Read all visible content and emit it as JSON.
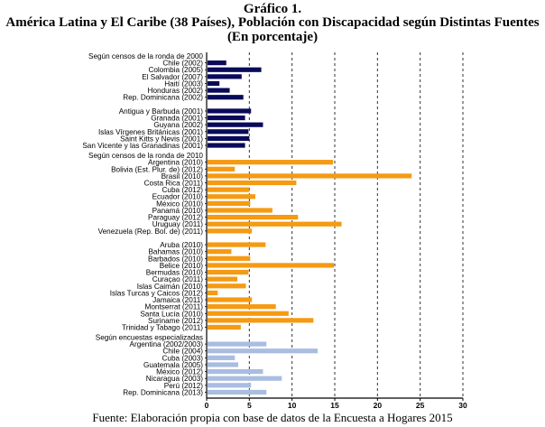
{
  "title": {
    "line1": "Gráfico 1.",
    "line2": "América Latina y El Caribe (38 Países), Población con Discapacidad según Distintas Fuentes",
    "line3": "(En porcentaje)"
  },
  "source": "Fuente: Elaboración propia con base de datos de la Encuesta a Hogares 2015",
  "chart_data": {
    "type": "bar",
    "orientation": "horizontal",
    "title": "América Latina y El Caribe (38 Países), Población con Discapacidad según Distintas Fuentes (En porcentaje)",
    "xlabel": "",
    "ylabel": "",
    "xlim": [
      0,
      30
    ],
    "xticks": [
      0,
      5,
      10,
      15,
      20,
      25,
      30
    ],
    "grid": "vertical dashed",
    "groups": [
      {
        "name": "Según censos de la ronda de 2000",
        "color": "#0a0a5a",
        "subgroups": [
          {
            "categories": [
              "Chile (2002)",
              "Colombia (2005)",
              "El Salvador (2007)",
              "Haití (2003)",
              "Honduras (2002)",
              "Rep. Dominicana (2002)"
            ],
            "values": [
              2.3,
              6.4,
              4.1,
              1.5,
              2.7,
              4.3
            ]
          },
          {
            "categories": [
              "Antigua y Barbuda (2001)",
              "Granada (2001)",
              "Guyana (2002)",
              "Islas Vírgenes Británicas (2001)",
              "Saint Kitts y Nevis (2001)",
              "San Vicente y las Granadinas (2001)"
            ],
            "values": [
              5.2,
              4.5,
              6.6,
              4.9,
              5.0,
              4.5
            ]
          }
        ]
      },
      {
        "name": "Según censos de la ronda de 2010",
        "color": "#f59a12",
        "subgroups": [
          {
            "categories": [
              "Argentina (2010)",
              "Bolivia (Est. Plur. de) (2012)",
              "Brasil (2010)",
              "Costa Rica (2011)",
              "Cuba (2012)",
              "Ecuador (2010)",
              "México (2010)",
              "Panamá (2010)",
              "Paraguay (2012)",
              "Uruguay (2011)",
              "Venezuela (Rep. Bol. de) (2011)"
            ],
            "values": [
              14.8,
              3.3,
              24.0,
              10.5,
              5.0,
              5.7,
              5.1,
              7.7,
              10.7,
              15.8,
              5.3
            ]
          },
          {
            "categories": [
              "Aruba (2010)",
              "Bahamas (2010)",
              "Barbados (2010)",
              "Belice (2010)",
              "Bermudas (2010)",
              "Curaçao (2011)",
              "Islas Caimán (2010)",
              "Islas Turcas y Caicos (2012)",
              "Jamaica (2011)",
              "Montserrat (2011)",
              "Santa Lucía (2010)",
              "Suriname (2012)",
              "Trinidad y Tabago (2011)"
            ],
            "values": [
              6.9,
              2.9,
              5.1,
              14.9,
              4.9,
              3.6,
              4.6,
              1.3,
              5.3,
              8.1,
              9.6,
              12.5,
              4.0
            ]
          }
        ]
      },
      {
        "name": "Según encuestas especializadas",
        "color": "#a9bde0",
        "subgroups": [
          {
            "categories": [
              "Argentina (2002/2003)",
              "Chile (2004)",
              "Cuba (2003)",
              "Guatemala (2005)",
              "México (2012)",
              "Nicaragua (2003)",
              "Perú (2012)",
              "Rep. Dominicana (2013)"
            ],
            "values": [
              7.0,
              13.0,
              3.3,
              3.7,
              6.6,
              8.8,
              5.2,
              7.0
            ]
          }
        ]
      }
    ]
  }
}
